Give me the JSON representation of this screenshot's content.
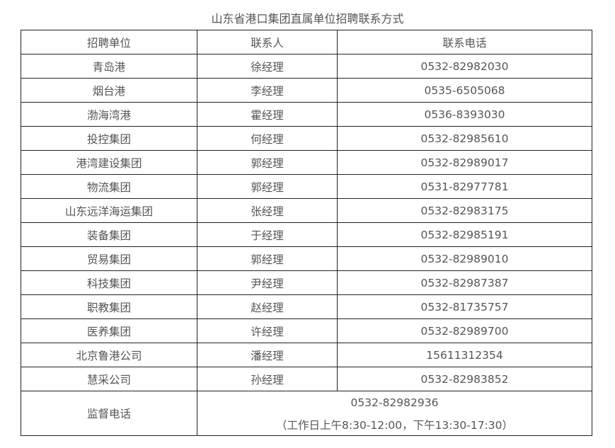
{
  "title": "山东省港口集团直属单位招聘联系方式",
  "headers": [
    "招聘单位",
    "联系人",
    "联系电话"
  ],
  "rows": [
    [
      "青岛港",
      "徐经理",
      "0532-82982030"
    ],
    [
      "烟台港",
      "李经理",
      "0535-6505068"
    ],
    [
      "渤海湾港",
      "霍经理",
      "0536-8393030"
    ],
    [
      "投控集团",
      "何经理",
      "0532-82985610"
    ],
    [
      "港湾建设集团",
      "郭经理",
      "0532-82989017"
    ],
    [
      "物流集团",
      "郭经理",
      "0531-82977781"
    ],
    [
      "山东远洋海运集团",
      "张经理",
      "0532-82983175"
    ],
    [
      "装备集团",
      "于经理",
      "0532-82985191"
    ],
    [
      "贸易集团",
      "郭经理",
      "0532-82989010"
    ],
    [
      "科技集团",
      "尹经理",
      "0532-82987387"
    ],
    [
      "职教集团",
      "赵经理",
      "0532-81735757"
    ],
    [
      "医养集团",
      "许经理",
      "0532-82989700"
    ],
    [
      "北京鲁港公司",
      "潘经理",
      "15611312354"
    ],
    [
      "慧采公司",
      "孙经理",
      "0532-82983852"
    ]
  ],
  "supervision": {
    "label": "监督电话",
    "phone": "0532-82982936",
    "hours": "（工作日上午8:30-12:00，下午13:30-17:30）"
  }
}
